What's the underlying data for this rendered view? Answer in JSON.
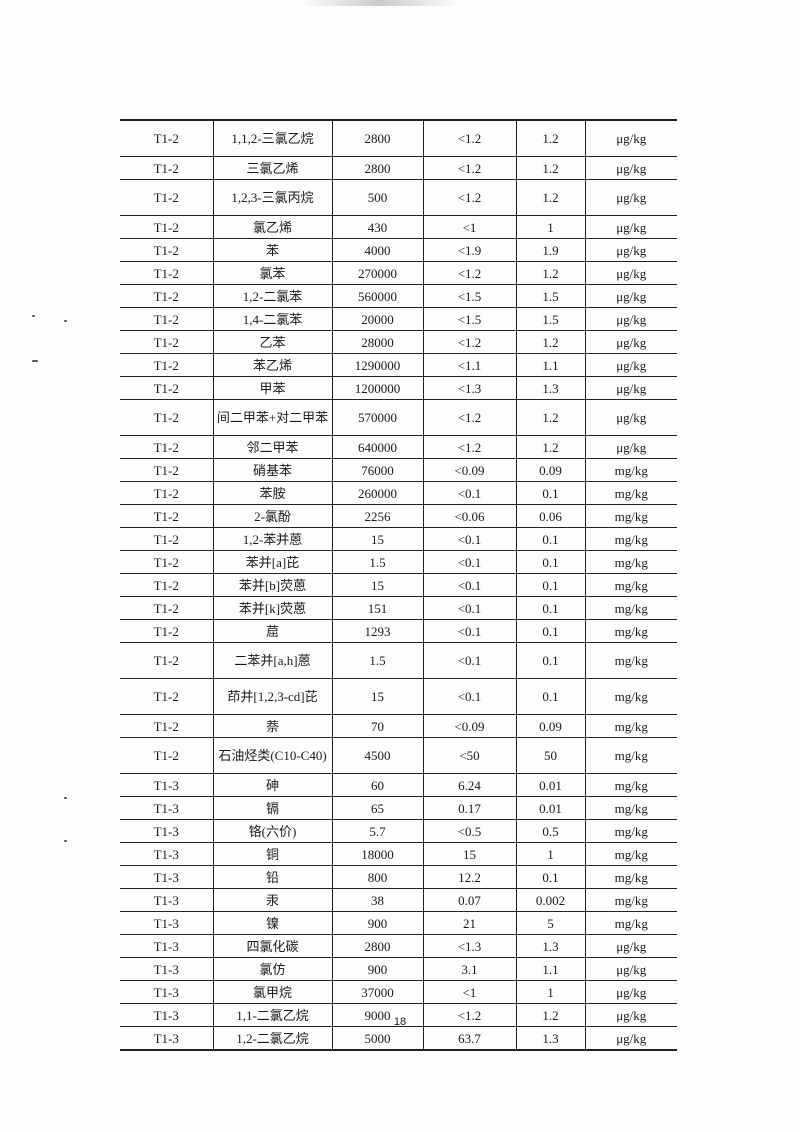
{
  "table": {
    "rows": [
      [
        "T1-2",
        "1,1,2-三氯乙烷",
        "2800",
        "<1.2",
        "1.2",
        "μg/kg"
      ],
      [
        "T1-2",
        "三氯乙烯",
        "2800",
        "<1.2",
        "1.2",
        "μg/kg"
      ],
      [
        "T1-2",
        "1,2,3-三氯丙烷",
        "500",
        "<1.2",
        "1.2",
        "μg/kg"
      ],
      [
        "T1-2",
        "氯乙烯",
        "430",
        "<1",
        "1",
        "μg/kg"
      ],
      [
        "T1-2",
        "苯",
        "4000",
        "<1.9",
        "1.9",
        "μg/kg"
      ],
      [
        "T1-2",
        "氯苯",
        "270000",
        "<1.2",
        "1.2",
        "μg/kg"
      ],
      [
        "T1-2",
        "1,2-二氯苯",
        "560000",
        "<1.5",
        "1.5",
        "μg/kg"
      ],
      [
        "T1-2",
        "1,4-二氯苯",
        "20000",
        "<1.5",
        "1.5",
        "μg/kg"
      ],
      [
        "T1-2",
        "乙苯",
        "28000",
        "<1.2",
        "1.2",
        "μg/kg"
      ],
      [
        "T1-2",
        "苯乙烯",
        "1290000",
        "<1.1",
        "1.1",
        "μg/kg"
      ],
      [
        "T1-2",
        "甲苯",
        "1200000",
        "<1.3",
        "1.3",
        "μg/kg"
      ],
      [
        "T1-2",
        "间二甲苯+对二甲苯",
        "570000",
        "<1.2",
        "1.2",
        "μg/kg"
      ],
      [
        "T1-2",
        "邻二甲苯",
        "640000",
        "<1.2",
        "1.2",
        "μg/kg"
      ],
      [
        "T1-2",
        "硝基苯",
        "76000",
        "<0.09",
        "0.09",
        "mg/kg"
      ],
      [
        "T1-2",
        "苯胺",
        "260000",
        "<0.1",
        "0.1",
        "mg/kg"
      ],
      [
        "T1-2",
        "2-氯酚",
        "2256",
        "<0.06",
        "0.06",
        "mg/kg"
      ],
      [
        "T1-2",
        "1,2-苯并蒽",
        "15",
        "<0.1",
        "0.1",
        "mg/kg"
      ],
      [
        "T1-2",
        "苯并[a]芘",
        "1.5",
        "<0.1",
        "0.1",
        "mg/kg"
      ],
      [
        "T1-2",
        "苯并[b]荧蒽",
        "15",
        "<0.1",
        "0.1",
        "mg/kg"
      ],
      [
        "T1-2",
        "苯并[k]荧蒽",
        "151",
        "<0.1",
        "0.1",
        "mg/kg"
      ],
      [
        "T1-2",
        "䓛",
        "1293",
        "<0.1",
        "0.1",
        "mg/kg"
      ],
      [
        "T1-2",
        "二苯并[a,h]蒽",
        "1.5",
        "<0.1",
        "0.1",
        "mg/kg"
      ],
      [
        "T1-2",
        "茚并[1,2,3-cd]芘",
        "15",
        "<0.1",
        "0.1",
        "mg/kg"
      ],
      [
        "T1-2",
        "萘",
        "70",
        "<0.09",
        "0.09",
        "mg/kg"
      ],
      [
        "T1-2",
        "石油烃类(C10-C40)",
        "4500",
        "<50",
        "50",
        "mg/kg"
      ],
      [
        "T1-3",
        "砷",
        "60",
        "6.24",
        "0.01",
        "mg/kg"
      ],
      [
        "T1-3",
        "镉",
        "65",
        "0.17",
        "0.01",
        "mg/kg"
      ],
      [
        "T1-3",
        "铬(六价)",
        "5.7",
        "<0.5",
        "0.5",
        "mg/kg"
      ],
      [
        "T1-3",
        "铜",
        "18000",
        "15",
        "1",
        "mg/kg"
      ],
      [
        "T1-3",
        "铅",
        "800",
        "12.2",
        "0.1",
        "mg/kg"
      ],
      [
        "T1-3",
        "汞",
        "38",
        "0.07",
        "0.002",
        "mg/kg"
      ],
      [
        "T1-3",
        "镍",
        "900",
        "21",
        "5",
        "mg/kg"
      ],
      [
        "T1-3",
        "四氯化碳",
        "2800",
        "<1.3",
        "1.3",
        "μg/kg"
      ],
      [
        "T1-3",
        "氯仿",
        "900",
        "3.1",
        "1.1",
        "μg/kg"
      ],
      [
        "T1-3",
        "氯甲烷",
        "37000",
        "<1",
        "1",
        "μg/kg"
      ],
      [
        "T1-3",
        "1,1-二氯乙烷",
        "9000",
        "<1.2",
        "1.2",
        "μg/kg"
      ],
      [
        "T1-3",
        "1,2-二氯乙烷",
        "5000",
        "63.7",
        "1.3",
        "μg/kg"
      ]
    ]
  },
  "page_number": "18"
}
